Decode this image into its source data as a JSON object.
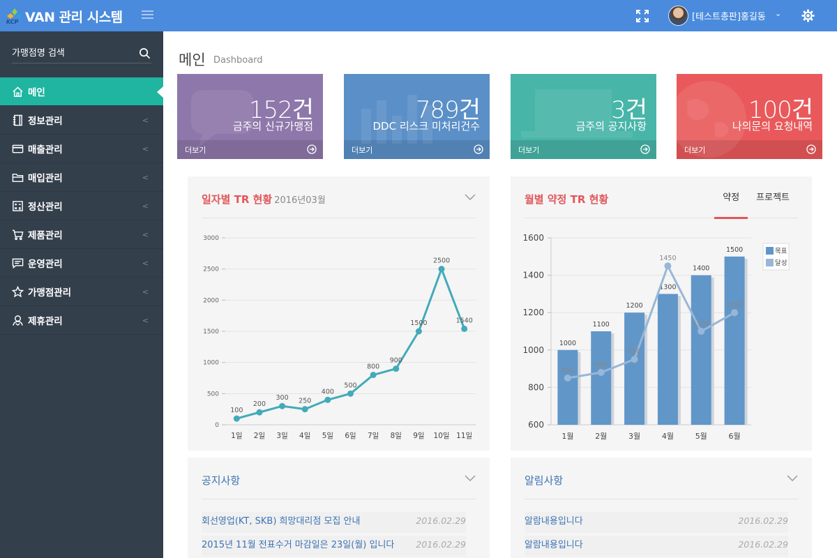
{
  "app": {
    "title": "VAN 관리 시스템",
    "logo_mark": "KCP",
    "user": "[테스트총판]홍길동"
  },
  "colors": {
    "topbar": "#4a8bdd",
    "sidebar": "#343f4c",
    "active": "#1fb5a0",
    "accent": "#e2575a"
  },
  "icons": {
    "expand": "expand-icon",
    "settings": "gear-icon",
    "menu_toggle": "hamburger-icon",
    "search": "search-icon"
  },
  "sidebar": {
    "search_placeholder": "가맹점명 검색",
    "items": [
      {
        "label": "메인",
        "icon": "home-icon",
        "active": true
      },
      {
        "label": "정보관리",
        "icon": "notebook-icon"
      },
      {
        "label": "매출관리",
        "icon": "card-icon"
      },
      {
        "label": "매입관리",
        "icon": "folder-icon"
      },
      {
        "label": "정산관리",
        "icon": "calculator-icon"
      },
      {
        "label": "제품관리",
        "icon": "cart-icon"
      },
      {
        "label": "운영관리",
        "icon": "comment-icon"
      },
      {
        "label": "가맹점관리",
        "icon": "star-icon"
      },
      {
        "label": "제휴관리",
        "icon": "handshake-icon"
      }
    ]
  },
  "page": {
    "title": "메인",
    "subtitle": "Dashboard"
  },
  "stats": [
    {
      "value": "152건",
      "label": "금주의 신규가맹점",
      "more": "더보기",
      "color": "#8e77aa"
    },
    {
      "value": "789건",
      "label": "DDC 리스크 미처리건수",
      "more": "더보기",
      "color": "#5b8fc7"
    },
    {
      "value": "3건",
      "label": "금주의 공지사항",
      "more": "더보기",
      "color": "#48b5a9"
    },
    {
      "value": "100건",
      "label": "나의문의 요청내역",
      "more": "더보기",
      "color": "#e9595b"
    }
  ],
  "daily_panel": {
    "title": "일자별 TR 현황",
    "period": "2016년03월"
  },
  "monthly_panel": {
    "title": "월별 약정 TR 현황",
    "tabs": [
      "약정",
      "프로젝트"
    ],
    "active_tab": 0
  },
  "chart_data": [
    {
      "type": "line",
      "title": "일자별 TR 현황",
      "categories": [
        "1일",
        "2일",
        "3일",
        "4일",
        "5일",
        "6일",
        "7일",
        "8일",
        "9일",
        "10일",
        "11일"
      ],
      "series": [
        {
          "values": [
            100,
            200,
            300,
            250,
            400,
            500,
            800,
            900,
            1500,
            2500,
            1540
          ]
        }
      ],
      "data_labels": [
        "100",
        "200",
        "300",
        "250",
        "400",
        "500",
        "800",
        "900",
        "1500",
        "2500",
        "1540"
      ],
      "ylim": [
        0,
        3000
      ],
      "yticks": [
        0,
        500,
        1000,
        1500,
        2000,
        2500,
        3000
      ],
      "ytick_labels": [
        "0",
        "500",
        "1000",
        "1500",
        "2000",
        "2500",
        "3000"
      ],
      "grid": true,
      "color": "#42aab8"
    },
    {
      "type": "bar",
      "title": "월별 약정 TR 현황",
      "categories": [
        "1월",
        "2월",
        "3월",
        "4월",
        "5월",
        "6월"
      ],
      "series": [
        {
          "name": "목표",
          "type": "bar",
          "values": [
            1000,
            1100,
            1200,
            1300,
            1400,
            1500
          ],
          "labels": [
            "1000",
            "1100",
            "1200",
            "1300",
            "1400",
            "1500"
          ],
          "color": "#6196c9"
        },
        {
          "name": "달성",
          "type": "line",
          "values": [
            850,
            880,
            950,
            1450,
            1100,
            1200
          ],
          "labels": [
            "850",
            "880",
            "950",
            "1450",
            "1100",
            "1200"
          ],
          "color": "#98b7d6"
        }
      ],
      "ylim": [
        600,
        1600
      ],
      "yticks": [
        600,
        800,
        1000,
        1200,
        1400,
        1600
      ],
      "ytick_labels": [
        "600",
        "800",
        "1000",
        "1200",
        "1400",
        "1600"
      ],
      "legend": "top-right",
      "grid": true
    }
  ],
  "notice": {
    "title": "공지사항",
    "items": [
      {
        "text": "회선영업(KT, SKB) 희망대리점 모집 안내",
        "date": "2016.02.29"
      },
      {
        "text": "2015년 11월 전표수거 마감일은 23일(월) 입니다",
        "date": "2016.02.29"
      }
    ]
  },
  "alerts": {
    "title": "알림사항",
    "items": [
      {
        "text": "알람내용입니다",
        "date": "2016.02.29"
      },
      {
        "text": "알람내용입니다",
        "date": "2016.02.29"
      }
    ]
  }
}
